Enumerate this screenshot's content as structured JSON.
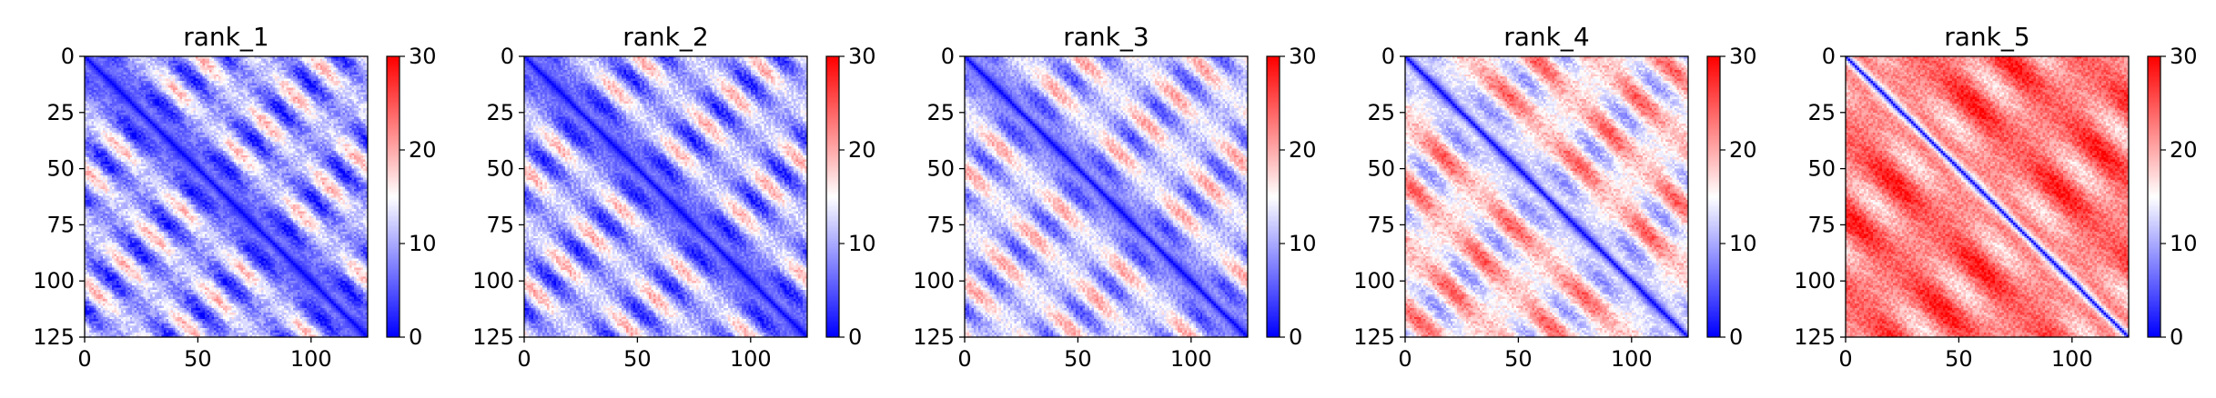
{
  "chart_data": [
    {
      "type": "heatmap",
      "title": "rank_1",
      "seed": 1,
      "xlim": [
        0,
        125
      ],
      "ylim": [
        125,
        0
      ],
      "clim": [
        0,
        30
      ],
      "size": 125,
      "xticks": [
        0,
        50,
        100
      ],
      "yticks": [
        0,
        25,
        50,
        75,
        100,
        125
      ],
      "cbar_ticks": [
        0,
        10,
        20,
        30
      ],
      "colormap": "bwr",
      "pattern": {
        "period": 25,
        "amp": 9,
        "base": 10.5,
        "diag_width": 7
      }
    },
    {
      "type": "heatmap",
      "title": "rank_2",
      "seed": 2,
      "xlim": [
        0,
        125
      ],
      "ylim": [
        125,
        0
      ],
      "clim": [
        0,
        30
      ],
      "size": 125,
      "xticks": [
        0,
        50,
        100
      ],
      "yticks": [
        0,
        25,
        50,
        75,
        100,
        125
      ],
      "cbar_ticks": [
        0,
        10,
        20,
        30
      ],
      "colormap": "bwr",
      "pattern": {
        "period": 25,
        "amp": 9,
        "base": 11,
        "diag_width": 7
      }
    },
    {
      "type": "heatmap",
      "title": "rank_3",
      "seed": 3,
      "xlim": [
        0,
        125
      ],
      "ylim": [
        125,
        0
      ],
      "clim": [
        0,
        30
      ],
      "size": 125,
      "xticks": [
        0,
        50,
        100
      ],
      "yticks": [
        0,
        25,
        50,
        75,
        100,
        125
      ],
      "cbar_ticks": [
        0,
        10,
        20,
        30
      ],
      "colormap": "bwr",
      "pattern": {
        "period": 25,
        "amp": 8,
        "base": 12.5,
        "diag_width": 6
      }
    },
    {
      "type": "heatmap",
      "title": "rank_4",
      "seed": 4,
      "xlim": [
        0,
        125
      ],
      "ylim": [
        125,
        0
      ],
      "clim": [
        0,
        30
      ],
      "size": 125,
      "xticks": [
        0,
        50,
        100
      ],
      "yticks": [
        0,
        25,
        50,
        75,
        100,
        125
      ],
      "cbar_ticks": [
        0,
        10,
        20,
        30
      ],
      "colormap": "bwr",
      "pattern": {
        "period": 28,
        "amp": 8,
        "base": 17,
        "diag_width": 5
      }
    },
    {
      "type": "heatmap",
      "title": "rank_5",
      "seed": 5,
      "xlim": [
        0,
        125
      ],
      "ylim": [
        125,
        0
      ],
      "clim": [
        0,
        30
      ],
      "size": 125,
      "xticks": [
        0,
        50,
        100
      ],
      "yticks": [
        0,
        25,
        50,
        75,
        100,
        125
      ],
      "cbar_ticks": [
        0,
        10,
        20,
        30
      ],
      "colormap": "bwr",
      "pattern": {
        "period": 35,
        "amp": 6,
        "base": 23,
        "diag_width": 3
      }
    }
  ]
}
